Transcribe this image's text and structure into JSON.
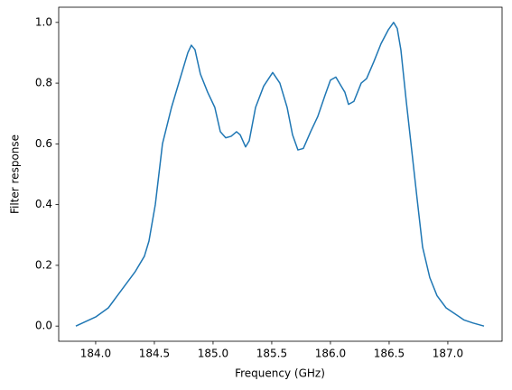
{
  "chart_data": {
    "type": "line",
    "xlabel": "Frequency (GHz)",
    "ylabel": "Filter response",
    "color": "#1f77b4",
    "x": [
      183.831,
      184.0,
      184.108,
      184.223,
      184.338,
      184.415,
      184.454,
      184.508,
      184.569,
      184.646,
      184.723,
      184.785,
      184.815,
      184.846,
      184.892,
      184.954,
      185.015,
      185.062,
      185.108,
      185.154,
      185.2,
      185.231,
      185.277,
      185.308,
      185.362,
      185.431,
      185.508,
      185.569,
      185.631,
      185.677,
      185.723,
      185.769,
      185.831,
      185.892,
      185.954,
      186.0,
      186.046,
      186.092,
      186.123,
      186.154,
      186.2,
      186.262,
      186.308,
      186.369,
      186.431,
      186.492,
      186.538,
      186.569,
      186.6,
      186.646,
      186.692,
      186.738,
      186.785,
      186.846,
      186.908,
      186.985,
      187.062,
      187.138,
      187.215,
      187.308
    ],
    "values": [
      0.0,
      0.03,
      0.06,
      0.12,
      0.18,
      0.23,
      0.28,
      0.4,
      0.6,
      0.72,
      0.82,
      0.9,
      0.925,
      0.91,
      0.83,
      0.77,
      0.72,
      0.64,
      0.62,
      0.625,
      0.64,
      0.63,
      0.59,
      0.61,
      0.72,
      0.79,
      0.835,
      0.8,
      0.72,
      0.63,
      0.58,
      0.585,
      0.64,
      0.69,
      0.76,
      0.81,
      0.82,
      0.79,
      0.77,
      0.73,
      0.74,
      0.8,
      0.815,
      0.87,
      0.93,
      0.975,
      1.0,
      0.98,
      0.91,
      0.74,
      0.58,
      0.42,
      0.26,
      0.16,
      0.1,
      0.06,
      0.04,
      0.02,
      0.01,
      0.0
    ],
    "xlim": [
      183.685,
      187.462
    ],
    "ylim": [
      -0.05,
      1.05
    ],
    "xticks": [
      {
        "value": 184,
        "label": "184.0"
      },
      184.5,
      {
        "value": 185,
        "label": "185.0"
      },
      185.5,
      {
        "value": 186,
        "label": "186.0"
      },
      186.5,
      {
        "value": 187,
        "label": "187.0"
      }
    ],
    "yticks": [
      {
        "value": 0,
        "label": "0.0"
      },
      0.2,
      0.4,
      0.6,
      0.8,
      {
        "value": 1,
        "label": "1.0"
      }
    ],
    "grid": false
  }
}
